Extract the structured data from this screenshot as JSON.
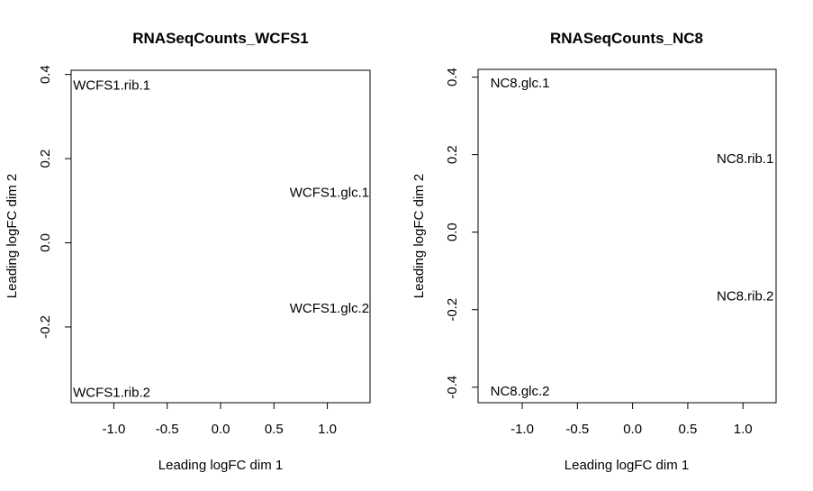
{
  "chart_data": [
    {
      "type": "scatter",
      "title": "RNASeqCounts_WCFS1",
      "xlabel": "Leading logFC dim 1",
      "ylabel": "Leading logFC dim 2",
      "xlim": [
        -1.4,
        1.4
      ],
      "ylim": [
        -0.38,
        0.41
      ],
      "xticks": [
        -1.0,
        -0.5,
        0.0,
        0.5,
        1.0
      ],
      "xtick_labels": [
        "-1.0",
        "-0.5",
        "0.0",
        "0.5",
        "1.0"
      ],
      "yticks": [
        -0.2,
        0.0,
        0.2,
        0.4
      ],
      "ytick_labels": [
        "-0.2",
        "0.0",
        "0.2",
        "0.4"
      ],
      "grid": false,
      "points": [
        {
          "label": "WCFS1.rib.1",
          "x": -1.02,
          "y": 0.375
        },
        {
          "label": "WCFS1.glc.1",
          "x": 1.02,
          "y": 0.12
        },
        {
          "label": "WCFS1.glc.2",
          "x": 1.02,
          "y": -0.155
        },
        {
          "label": "WCFS1.rib.2",
          "x": -1.02,
          "y": -0.355
        }
      ]
    },
    {
      "type": "scatter",
      "title": "RNASeqCounts_NC8",
      "xlabel": "Leading logFC dim 1",
      "ylabel": "Leading logFC dim 2",
      "xlim": [
        -1.4,
        1.3
      ],
      "ylim": [
        -0.44,
        0.42
      ],
      "xticks": [
        -1.0,
        -0.5,
        0.0,
        0.5,
        1.0
      ],
      "xtick_labels": [
        "-1.0",
        "-0.5",
        "0.0",
        "0.5",
        "1.0"
      ],
      "yticks": [
        -0.4,
        -0.2,
        0.0,
        0.2,
        0.4
      ],
      "ytick_labels": [
        "-0.4",
        "-0.2",
        "0.0",
        "0.2",
        "0.4"
      ],
      "grid": false,
      "points": [
        {
          "label": "NC8.glc.1",
          "x": -1.02,
          "y": 0.385
        },
        {
          "label": "NC8.rib.1",
          "x": 1.02,
          "y": 0.19
        },
        {
          "label": "NC8.rib.2",
          "x": 1.02,
          "y": -0.165
        },
        {
          "label": "NC8.glc.2",
          "x": -1.02,
          "y": -0.41
        }
      ]
    }
  ]
}
